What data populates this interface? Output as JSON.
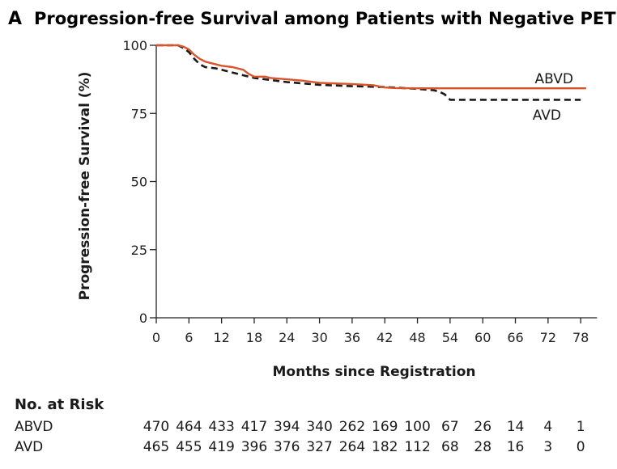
{
  "panel_letter": "A",
  "title": "Progression-free Survival among Patients with Negative PET Findings",
  "chart_data": {
    "type": "line",
    "title": "Progression-free Survival among Patients with Negative PET Findings",
    "xlabel": "Months since Registration",
    "ylabel": "Progression-free Survival (%)",
    "xlim": [
      0,
      81
    ],
    "ylim": [
      0,
      100
    ],
    "x_ticks": [
      0,
      6,
      12,
      18,
      24,
      30,
      36,
      42,
      48,
      54,
      60,
      66,
      72,
      78
    ],
    "y_ticks": [
      0,
      25,
      50,
      75,
      100
    ],
    "series": [
      {
        "name": "ABVD",
        "color": "#d9542b",
        "style": "solid",
        "points": [
          [
            0,
            100
          ],
          [
            4,
            100
          ],
          [
            5,
            99.5
          ],
          [
            6,
            98.5
          ],
          [
            7,
            96.5
          ],
          [
            8,
            95
          ],
          [
            9,
            94
          ],
          [
            10,
            93.5
          ],
          [
            12,
            92.5
          ],
          [
            14,
            92
          ],
          [
            16,
            91
          ],
          [
            17,
            89.5
          ],
          [
            18,
            88.5
          ],
          [
            20,
            88.5
          ],
          [
            21,
            88
          ],
          [
            24,
            87.5
          ],
          [
            27,
            87
          ],
          [
            30,
            86.2
          ],
          [
            36,
            85.8
          ],
          [
            40,
            85.3
          ],
          [
            42,
            84.5
          ],
          [
            44,
            84.3
          ],
          [
            48,
            84.2
          ],
          [
            60,
            84.2
          ],
          [
            72,
            84.2
          ],
          [
            79,
            84.2
          ]
        ]
      },
      {
        "name": "AVD",
        "color": "#1a1a1a",
        "style": "dashed",
        "points": [
          [
            0,
            100
          ],
          [
            4,
            100
          ],
          [
            5,
            99
          ],
          [
            6,
            97.5
          ],
          [
            7,
            95
          ],
          [
            8,
            93
          ],
          [
            9,
            92
          ],
          [
            11,
            91.5
          ],
          [
            12,
            91
          ],
          [
            14,
            90
          ],
          [
            16,
            89
          ],
          [
            18,
            88
          ],
          [
            20,
            87.5
          ],
          [
            24,
            86.5
          ],
          [
            27,
            86
          ],
          [
            30,
            85.5
          ],
          [
            36,
            85
          ],
          [
            42,
            84.7
          ],
          [
            48,
            84
          ],
          [
            51,
            83.5
          ],
          [
            52,
            83
          ],
          [
            53,
            82
          ],
          [
            54,
            80
          ],
          [
            56,
            80
          ],
          [
            66,
            80
          ],
          [
            72,
            80
          ],
          [
            78,
            80
          ]
        ]
      }
    ],
    "annotations": [
      "ABVD",
      "AVD"
    ]
  },
  "risk_table": {
    "header": "No. at Risk",
    "rows": [
      {
        "label": "ABVD",
        "values": [
          "470",
          "464",
          "433",
          "417",
          "394",
          "340",
          "262",
          "169",
          "100",
          "67",
          "26",
          "14",
          "4",
          "1"
        ]
      },
      {
        "label": "AVD",
        "values": [
          "465",
          "455",
          "419",
          "396",
          "376",
          "327",
          "264",
          "182",
          "112",
          "68",
          "28",
          "16",
          "3",
          "0"
        ]
      }
    ]
  }
}
